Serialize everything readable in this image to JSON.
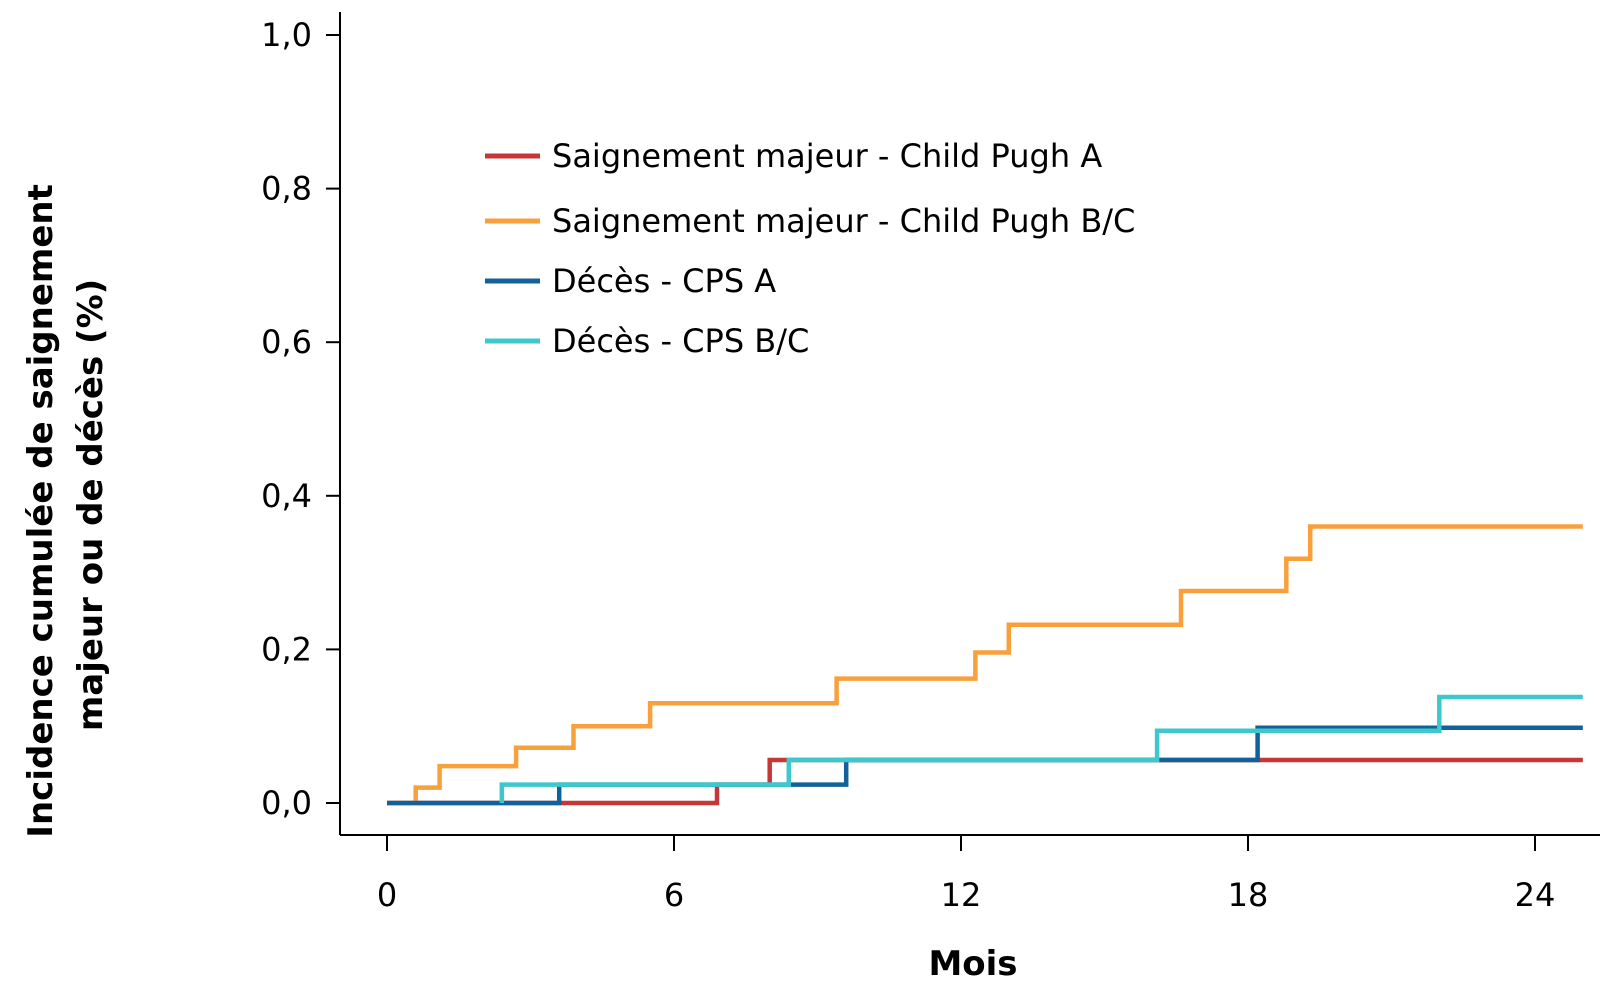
{
  "chart_data": {
    "type": "line",
    "step": true,
    "xlabel": "Mois",
    "ylabel": [
      "Incidence cumulée de saignement",
      "majeur ou de décès (%)"
    ],
    "xlim": [
      -1,
      25
    ],
    "ylim": [
      -0.04,
      1.03
    ],
    "xticks": [
      0,
      6,
      12,
      18,
      24
    ],
    "xtick_labels": [
      "0",
      "6",
      "12",
      "18",
      "24"
    ],
    "yticks": [
      0.0,
      0.2,
      0.4,
      0.6,
      0.8,
      1.0
    ],
    "ytick_labels": [
      "0,0",
      "0,2",
      "0,4",
      "0,6",
      "0,8",
      "1,0"
    ],
    "grid": false,
    "legend_position": "top-left",
    "series": [
      {
        "name": "Saignement majeur - Child Pugh A",
        "color": "#c83737",
        "points": [
          [
            0,
            0
          ],
          [
            6.9,
            0
          ],
          [
            6.9,
            0.024
          ],
          [
            8.0,
            0.024
          ],
          [
            8.0,
            0.056
          ],
          [
            25,
            0.056
          ]
        ]
      },
      {
        "name": "Saignement majeur - Child Pugh B/C",
        "color": "#f7a03c",
        "points": [
          [
            0,
            0
          ],
          [
            0.6,
            0
          ],
          [
            0.6,
            0.02
          ],
          [
            1.1,
            0.02
          ],
          [
            1.1,
            0.048
          ],
          [
            2.7,
            0.048
          ],
          [
            2.7,
            0.072
          ],
          [
            3.9,
            0.072
          ],
          [
            3.9,
            0.1
          ],
          [
            5.5,
            0.1
          ],
          [
            5.5,
            0.13
          ],
          [
            9.4,
            0.13
          ],
          [
            9.4,
            0.162
          ],
          [
            12.3,
            0.162
          ],
          [
            12.3,
            0.196
          ],
          [
            13.0,
            0.196
          ],
          [
            13.0,
            0.232
          ],
          [
            16.6,
            0.232
          ],
          [
            16.6,
            0.276
          ],
          [
            18.8,
            0.276
          ],
          [
            18.8,
            0.318
          ],
          [
            19.3,
            0.318
          ],
          [
            19.3,
            0.36
          ],
          [
            25,
            0.36
          ]
        ]
      },
      {
        "name": "Décès - CPS A",
        "color": "#12619a",
        "points": [
          [
            0,
            0
          ],
          [
            3.6,
            0
          ],
          [
            3.6,
            0.024
          ],
          [
            9.6,
            0.024
          ],
          [
            9.6,
            0.056
          ],
          [
            18.2,
            0.056
          ],
          [
            18.2,
            0.098
          ],
          [
            25,
            0.098
          ]
        ]
      },
      {
        "name": "Décès - CPS B/C",
        "color": "#3cc8cc",
        "points": [
          [
            2.4,
            0
          ],
          [
            2.4,
            0.024
          ],
          [
            8.4,
            0.024
          ],
          [
            8.4,
            0.056
          ],
          [
            16.1,
            0.056
          ],
          [
            16.1,
            0.094
          ],
          [
            22.0,
            0.094
          ],
          [
            22.0,
            0.138
          ],
          [
            25,
            0.138
          ]
        ]
      }
    ]
  }
}
